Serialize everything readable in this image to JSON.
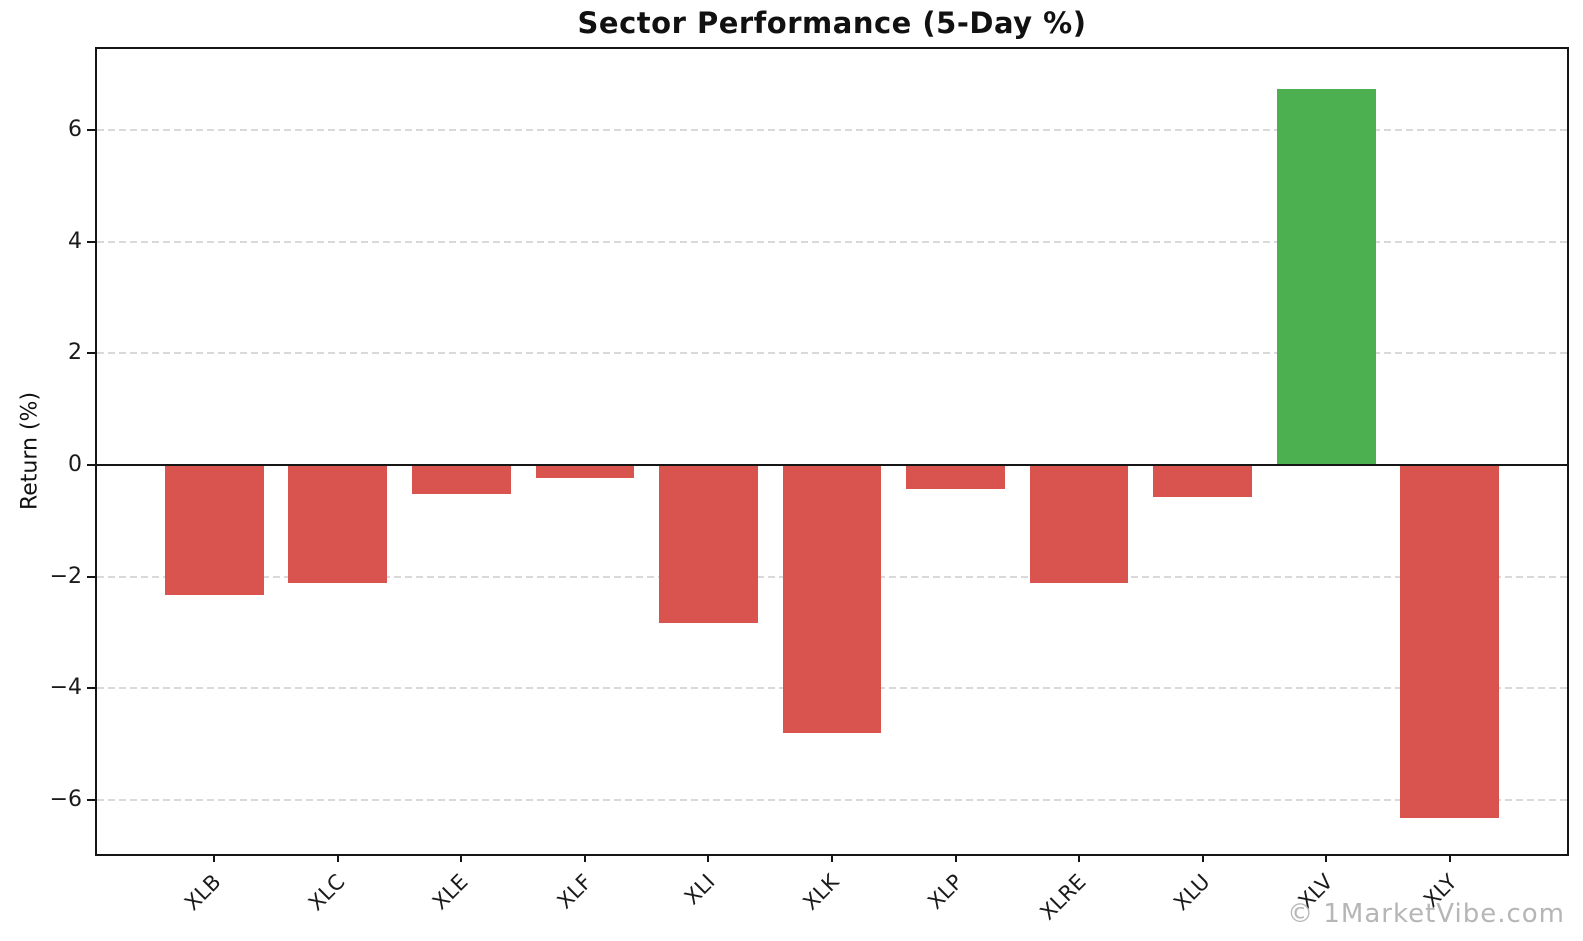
{
  "title": "Sector Performance (5-Day %)",
  "watermark": "© 1MarketVibe.com",
  "colors": {
    "positive_bar": "#4caf50",
    "negative_bar": "#d9534f",
    "grid": "#d9d9d9",
    "axis": "#151515",
    "watermark": "#b6b6b6"
  },
  "chart_data": {
    "type": "bar",
    "title": "Sector Performance (5-Day %)",
    "xlabel": "",
    "ylabel": "Return (%)",
    "categories": [
      "XLB",
      "XLC",
      "XLE",
      "XLF",
      "XLI",
      "XLK",
      "XLP",
      "XLRE",
      "XLU",
      "XLV",
      "XLY"
    ],
    "values": [
      -2.33,
      -2.12,
      -0.53,
      -0.23,
      -2.84,
      -4.8,
      -0.44,
      -2.11,
      -0.57,
      6.74,
      -6.33
    ],
    "bar_color_rule": "green if value >= 0 else red",
    "ylim": [
      -6.97,
      7.45
    ],
    "yticks": [
      6,
      4,
      2,
      0,
      -2,
      -4,
      -6
    ],
    "grid": "horizontal dashed",
    "legend": "none"
  }
}
